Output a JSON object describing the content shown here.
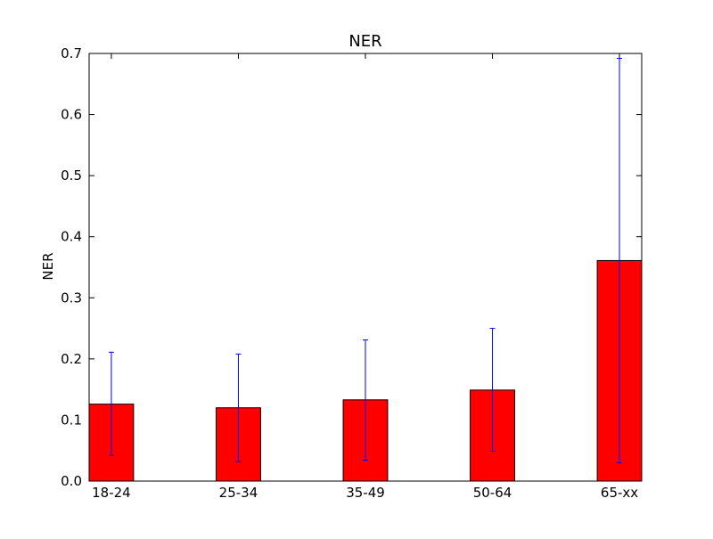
{
  "chart_data": {
    "type": "bar",
    "title": "NER",
    "xlabel": "",
    "ylabel": "NER",
    "categories": [
      "18-24",
      "25-34",
      "35-49",
      "50-64",
      "65-xx"
    ],
    "values": [
      0.126,
      0.12,
      0.133,
      0.149,
      0.361
    ],
    "error_low": [
      0.042,
      0.032,
      0.034,
      0.049,
      0.03
    ],
    "error_high": [
      0.211,
      0.208,
      0.231,
      0.25,
      0.692
    ],
    "ylim": [
      0,
      0.7
    ],
    "yticks": [
      "0.0",
      "0.1",
      "0.2",
      "0.3",
      "0.4",
      "0.5",
      "0.6",
      "0.7"
    ],
    "grid": false,
    "legend": "none",
    "colors": {
      "bar_fill": "#ff0000",
      "bar_edge": "#000000",
      "error_bar": "#0000ff",
      "axes": "#000000"
    }
  }
}
